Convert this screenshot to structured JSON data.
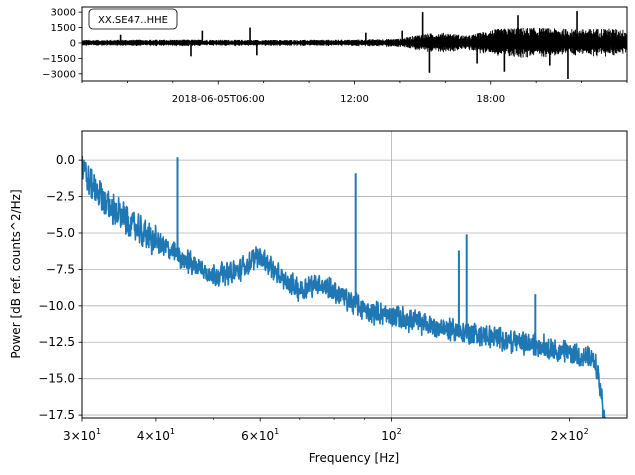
{
  "chart_data": [
    {
      "type": "line",
      "panel": "waveform",
      "annotation": "XX.SE47..HHE",
      "x_tick_labels": [
        "2018-06-05T06:00",
        "12:00",
        "18:00"
      ],
      "y_ticks": [
        3000,
        1500,
        0,
        -1500,
        -3000
      ],
      "y_tick_labels": [
        "3000",
        "1500",
        "0",
        "−1500",
        "−3000"
      ],
      "ylim": [
        -3700,
        3500
      ],
      "color": "#000000",
      "envelope": {
        "x_hours": [
          0,
          2,
          4,
          6,
          8,
          10,
          12,
          14,
          15,
          16,
          17,
          18,
          19,
          20,
          21,
          22,
          23,
          24
        ],
        "amplitude": [
          300,
          320,
          330,
          320,
          300,
          310,
          330,
          420,
          900,
          1000,
          700,
          1300,
          1500,
          1500,
          1400,
          1350,
          1450,
          1300
        ]
      },
      "spikes": [
        {
          "hour": 1.7,
          "value": 800
        },
        {
          "hour": 4.8,
          "value": -1300
        },
        {
          "hour": 5.3,
          "value": 1200
        },
        {
          "hour": 7.4,
          "value": 1500
        },
        {
          "hour": 7.7,
          "value": -1200
        },
        {
          "hour": 12.5,
          "value": 1000
        },
        {
          "hour": 14.1,
          "value": 1200
        },
        {
          "hour": 15.0,
          "value": 3000
        },
        {
          "hour": 15.3,
          "value": -2900
        },
        {
          "hour": 17.4,
          "value": -2000
        },
        {
          "hour": 18.6,
          "value": -2800
        },
        {
          "hour": 19.2,
          "value": 2700
        },
        {
          "hour": 20.6,
          "value": -2200
        },
        {
          "hour": 21.4,
          "value": -3500
        },
        {
          "hour": 21.8,
          "value": 3100
        }
      ]
    },
    {
      "type": "line",
      "panel": "spectrum",
      "xlabel": "Frequency [Hz]",
      "ylabel": "Power [dB ref. counts^2/Hz]",
      "x_scale": "log",
      "xlim": [
        30,
        250
      ],
      "ylim": [
        -17.7,
        2.0
      ],
      "x_major_ticks": [
        30,
        40,
        60,
        100,
        200
      ],
      "x_tick_labels": [
        {
          "base": "3",
          "mult": "10",
          "exp": "1"
        },
        {
          "base": "4",
          "mult": "10",
          "exp": "1"
        },
        {
          "base": "6",
          "mult": "10",
          "exp": "1"
        },
        {
          "base": "",
          "mult": "10",
          "exp": "2"
        },
        {
          "base": "2",
          "mult": "10",
          "exp": "2"
        }
      ],
      "y_ticks": [
        0.0,
        -2.5,
        -5.0,
        -7.5,
        -10.0,
        -12.5,
        -15.0,
        -17.5
      ],
      "y_tick_labels": [
        "0.0",
        "−2.5",
        "−5.0",
        "−7.5",
        "−10.0",
        "−12.5",
        "−15.0",
        "−17.5"
      ],
      "grid": true,
      "color": "#1f77b4",
      "trend": {
        "freq_hz": [
          30,
          31,
          33,
          36,
          40,
          45,
          50,
          55,
          60,
          65,
          70,
          75,
          80,
          90,
          100,
          120,
          140,
          160,
          180,
          200,
          215,
          222,
          226,
          230
        ],
        "power_db": [
          -0.5,
          -1.6,
          -3.0,
          -4.3,
          -5.6,
          -6.9,
          -7.9,
          -7.6,
          -6.5,
          -8.1,
          -8.9,
          -8.4,
          -9.0,
          -10.3,
          -10.7,
          -11.5,
          -12.0,
          -12.4,
          -12.8,
          -13.2,
          -13.6,
          -14.2,
          -16.0,
          -18.5
        ]
      },
      "peaks": [
        {
          "freq_hz": 43.5,
          "power_db": 0.2
        },
        {
          "freq_hz": 87.0,
          "power_db": -0.9
        },
        {
          "freq_hz": 130.0,
          "power_db": -6.2
        },
        {
          "freq_hz": 134.0,
          "power_db": -5.1
        },
        {
          "freq_hz": 175.0,
          "power_db": -9.2
        }
      ]
    }
  ]
}
